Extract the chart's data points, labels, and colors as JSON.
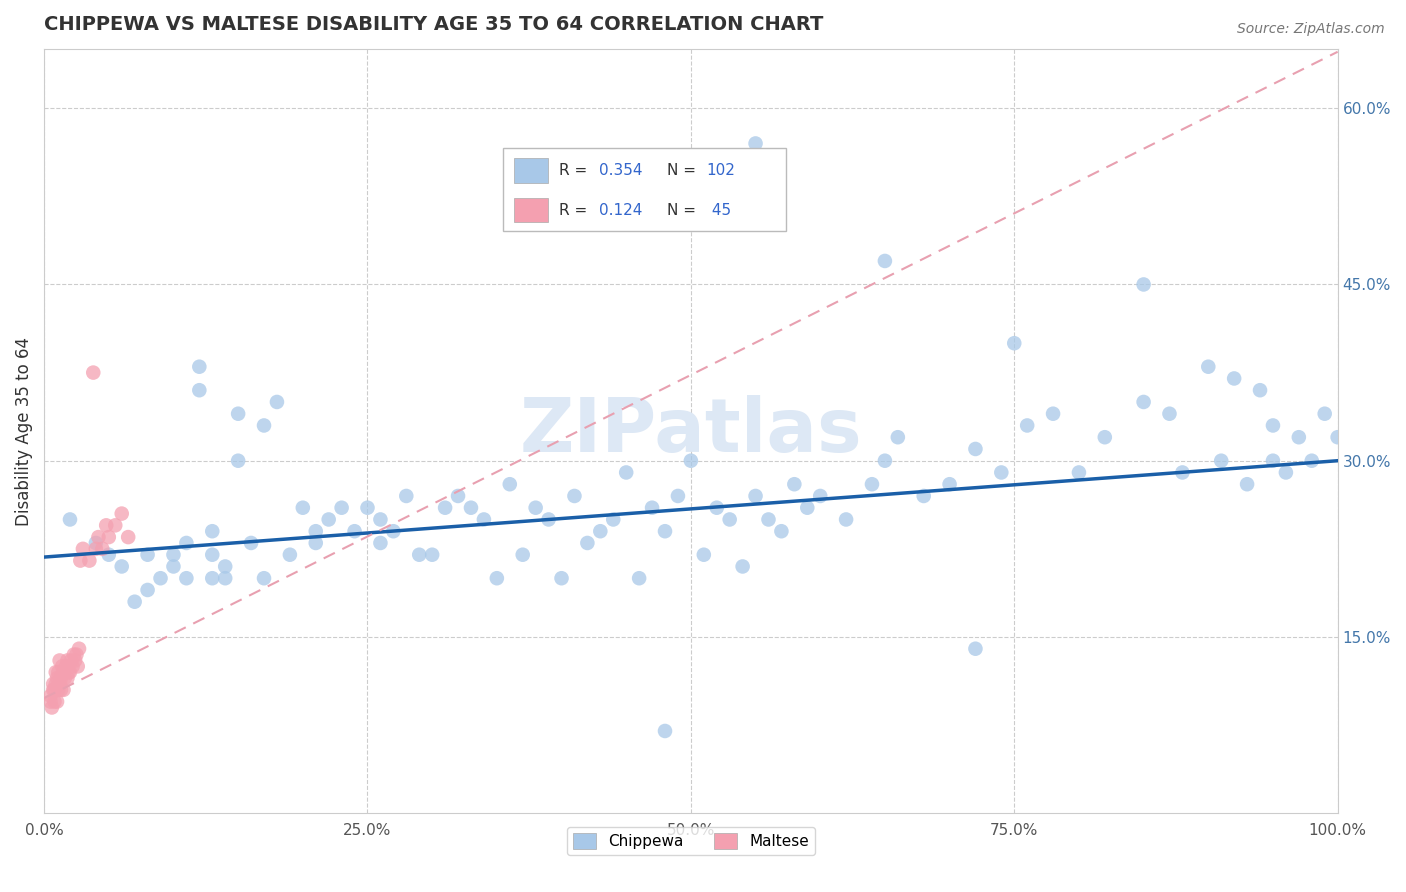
{
  "title": "CHIPPEWA VS MALTESE DISABILITY AGE 35 TO 64 CORRELATION CHART",
  "source": "Source: ZipAtlas.com",
  "ylabel": "Disability Age 35 to 64",
  "xlim": [
    0.0,
    1.0
  ],
  "ylim": [
    0.0,
    0.65
  ],
  "xtick_positions": [
    0.0,
    0.25,
    0.5,
    0.75,
    1.0
  ],
  "xtick_labels": [
    "0.0%",
    "25.0%",
    "50.0%",
    "75.0%",
    "100.0%"
  ],
  "ytick_positions": [
    0.15,
    0.3,
    0.45,
    0.6
  ],
  "ytick_labels": [
    "15.0%",
    "30.0%",
    "45.0%",
    "60.0%"
  ],
  "chippewa_color": "#a8c8e8",
  "maltese_color": "#f4a0b0",
  "chippewa_line_color": "#1a5fa8",
  "maltese_line_color": "#e06070",
  "maltese_dash_color": "#e8a0b0",
  "grid_color": "#cccccc",
  "background_color": "#ffffff",
  "watermark": "ZIPatlas",
  "watermark_color": "#dde8f5",
  "chippewa_R": 0.354,
  "chippewa_N": 102,
  "maltese_R": 0.124,
  "maltese_N": 45,
  "chippewa_intercept": 0.218,
  "chippewa_slope": 0.082,
  "maltese_intercept": 0.098,
  "maltese_slope": 0.55,
  "chippewa_x": [
    0.02,
    0.04,
    0.05,
    0.06,
    0.07,
    0.08,
    0.08,
    0.09,
    0.1,
    0.1,
    0.11,
    0.11,
    0.12,
    0.12,
    0.13,
    0.13,
    0.13,
    0.14,
    0.14,
    0.15,
    0.15,
    0.16,
    0.17,
    0.17,
    0.18,
    0.19,
    0.2,
    0.21,
    0.21,
    0.22,
    0.23,
    0.24,
    0.25,
    0.26,
    0.26,
    0.27,
    0.28,
    0.29,
    0.3,
    0.31,
    0.32,
    0.33,
    0.34,
    0.35,
    0.36,
    0.37,
    0.38,
    0.39,
    0.4,
    0.41,
    0.42,
    0.43,
    0.44,
    0.45,
    0.46,
    0.47,
    0.48,
    0.49,
    0.5,
    0.51,
    0.52,
    0.53,
    0.54,
    0.55,
    0.56,
    0.57,
    0.58,
    0.59,
    0.6,
    0.62,
    0.64,
    0.65,
    0.66,
    0.68,
    0.7,
    0.72,
    0.74,
    0.76,
    0.78,
    0.8,
    0.82,
    0.85,
    0.87,
    0.88,
    0.9,
    0.91,
    0.92,
    0.93,
    0.94,
    0.95,
    0.96,
    0.97,
    0.98,
    0.99,
    1.0,
    0.55,
    0.65,
    0.75,
    0.85,
    0.95,
    0.48,
    0.72
  ],
  "chippewa_y": [
    0.25,
    0.23,
    0.22,
    0.21,
    0.18,
    0.19,
    0.22,
    0.2,
    0.22,
    0.21,
    0.2,
    0.23,
    0.38,
    0.36,
    0.22,
    0.2,
    0.24,
    0.21,
    0.2,
    0.34,
    0.3,
    0.23,
    0.33,
    0.2,
    0.35,
    0.22,
    0.26,
    0.24,
    0.23,
    0.25,
    0.26,
    0.24,
    0.26,
    0.25,
    0.23,
    0.24,
    0.27,
    0.22,
    0.22,
    0.26,
    0.27,
    0.26,
    0.25,
    0.2,
    0.28,
    0.22,
    0.26,
    0.25,
    0.2,
    0.27,
    0.23,
    0.24,
    0.25,
    0.29,
    0.2,
    0.26,
    0.24,
    0.27,
    0.3,
    0.22,
    0.26,
    0.25,
    0.21,
    0.27,
    0.25,
    0.24,
    0.28,
    0.26,
    0.27,
    0.25,
    0.28,
    0.3,
    0.32,
    0.27,
    0.28,
    0.31,
    0.29,
    0.33,
    0.34,
    0.29,
    0.32,
    0.35,
    0.34,
    0.29,
    0.38,
    0.3,
    0.37,
    0.28,
    0.36,
    0.3,
    0.29,
    0.32,
    0.3,
    0.34,
    0.32,
    0.57,
    0.47,
    0.4,
    0.45,
    0.33,
    0.07,
    0.14
  ],
  "maltese_x": [
    0.005,
    0.005,
    0.006,
    0.007,
    0.007,
    0.008,
    0.008,
    0.009,
    0.009,
    0.01,
    0.01,
    0.011,
    0.011,
    0.012,
    0.012,
    0.013,
    0.013,
    0.014,
    0.015,
    0.015,
    0.016,
    0.017,
    0.018,
    0.018,
    0.019,
    0.02,
    0.021,
    0.022,
    0.023,
    0.024,
    0.025,
    0.026,
    0.027,
    0.028,
    0.03,
    0.035,
    0.038,
    0.04,
    0.042,
    0.045,
    0.048,
    0.05,
    0.055,
    0.06,
    0.065
  ],
  "maltese_y": [
    0.095,
    0.1,
    0.09,
    0.105,
    0.11,
    0.095,
    0.105,
    0.11,
    0.12,
    0.095,
    0.115,
    0.105,
    0.12,
    0.11,
    0.13,
    0.105,
    0.115,
    0.125,
    0.105,
    0.12,
    0.115,
    0.125,
    0.115,
    0.13,
    0.12,
    0.12,
    0.13,
    0.125,
    0.135,
    0.13,
    0.135,
    0.125,
    0.14,
    0.215,
    0.225,
    0.215,
    0.375,
    0.225,
    0.235,
    0.225,
    0.245,
    0.235,
    0.245,
    0.255,
    0.235
  ]
}
